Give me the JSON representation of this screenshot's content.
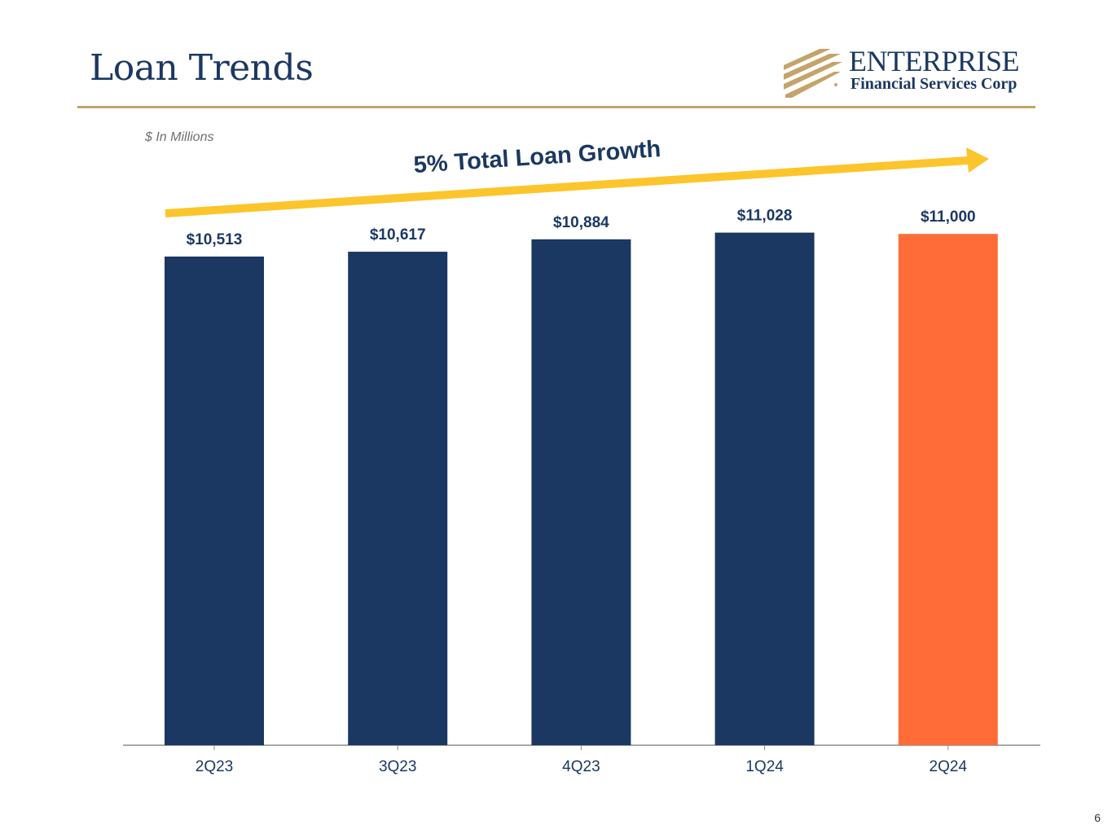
{
  "slide": {
    "title": "Loan Trends",
    "units_note": "$ In Millions",
    "page_number": "6"
  },
  "logo": {
    "name": "ENTERPRISE",
    "subtitle": "Financial Services Corp",
    "brand_navy": "#1b3862",
    "brand_gold": "#c4a46a"
  },
  "chart_data": {
    "type": "bar",
    "title": "",
    "xlabel": "",
    "ylabel": "",
    "categories": [
      "2Q23",
      "3Q23",
      "4Q23",
      "1Q24",
      "2Q24"
    ],
    "values": [
      10513,
      10617,
      10884,
      11028,
      11000
    ],
    "value_labels": [
      "$10,513",
      "$10,617",
      "$10,884",
      "$11,028",
      "$11,000"
    ],
    "bar_colors": [
      "#1b3862",
      "#1b3862",
      "#1b3862",
      "#1b3862",
      "#ff6c37"
    ],
    "annotation": {
      "text": "5% Total Loan Growth",
      "arrow_color": "#fcc52b",
      "text_color": "#1b3862"
    },
    "grid": false,
    "legend": "none"
  }
}
